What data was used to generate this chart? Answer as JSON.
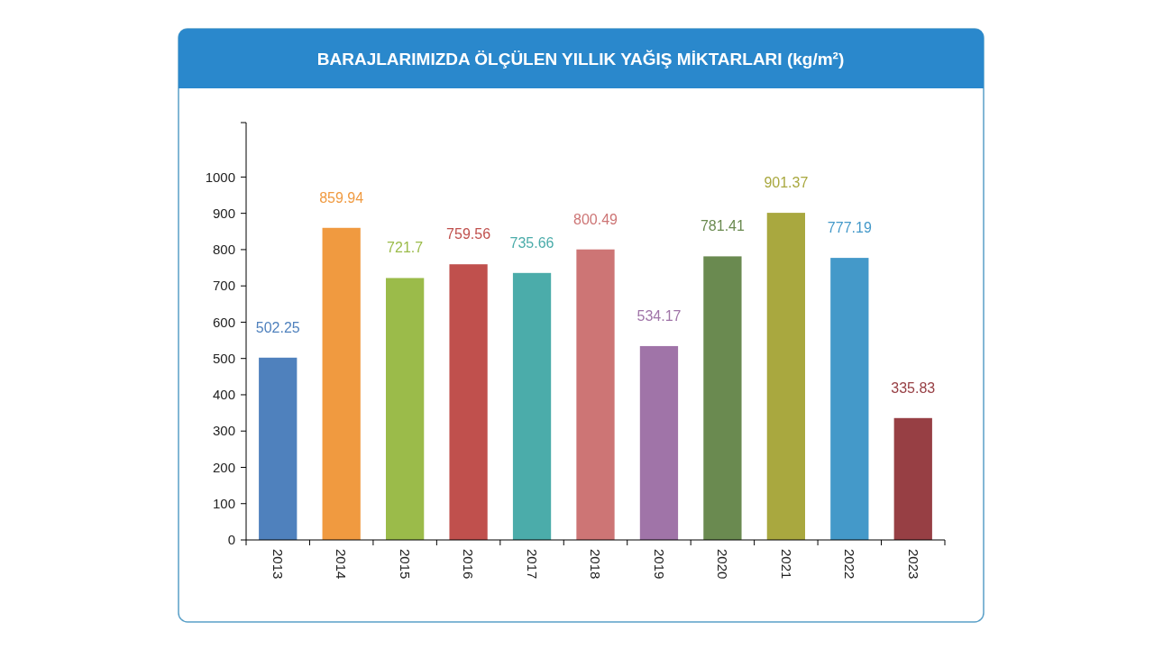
{
  "chart_data": {
    "type": "bar",
    "title": "BARAJLARIMIZDA ÖLÇÜLEN YILLIK YAĞIŞ MİKTARLARI (kg/m²)",
    "categories": [
      "2013",
      "2014",
      "2015",
      "2016",
      "2017",
      "2018",
      "2019",
      "2020",
      "2021",
      "2022",
      "2023"
    ],
    "values": [
      502.25,
      859.94,
      721.7,
      759.56,
      735.66,
      800.49,
      534.17,
      781.41,
      901.37,
      777.19,
      335.83
    ],
    "colors": [
      "#4f81bd",
      "#f09a40",
      "#9bbb4a",
      "#c0504d",
      "#4bacaa",
      "#cd7575",
      "#a074a8",
      "#6a8a50",
      "#a9a83f",
      "#4499c9",
      "#973f44"
    ],
    "ylim": [
      0,
      1150
    ],
    "yticks": [
      0,
      100,
      200,
      300,
      400,
      500,
      600,
      700,
      800,
      900,
      1000
    ],
    "data_labels": true,
    "grid": false
  }
}
